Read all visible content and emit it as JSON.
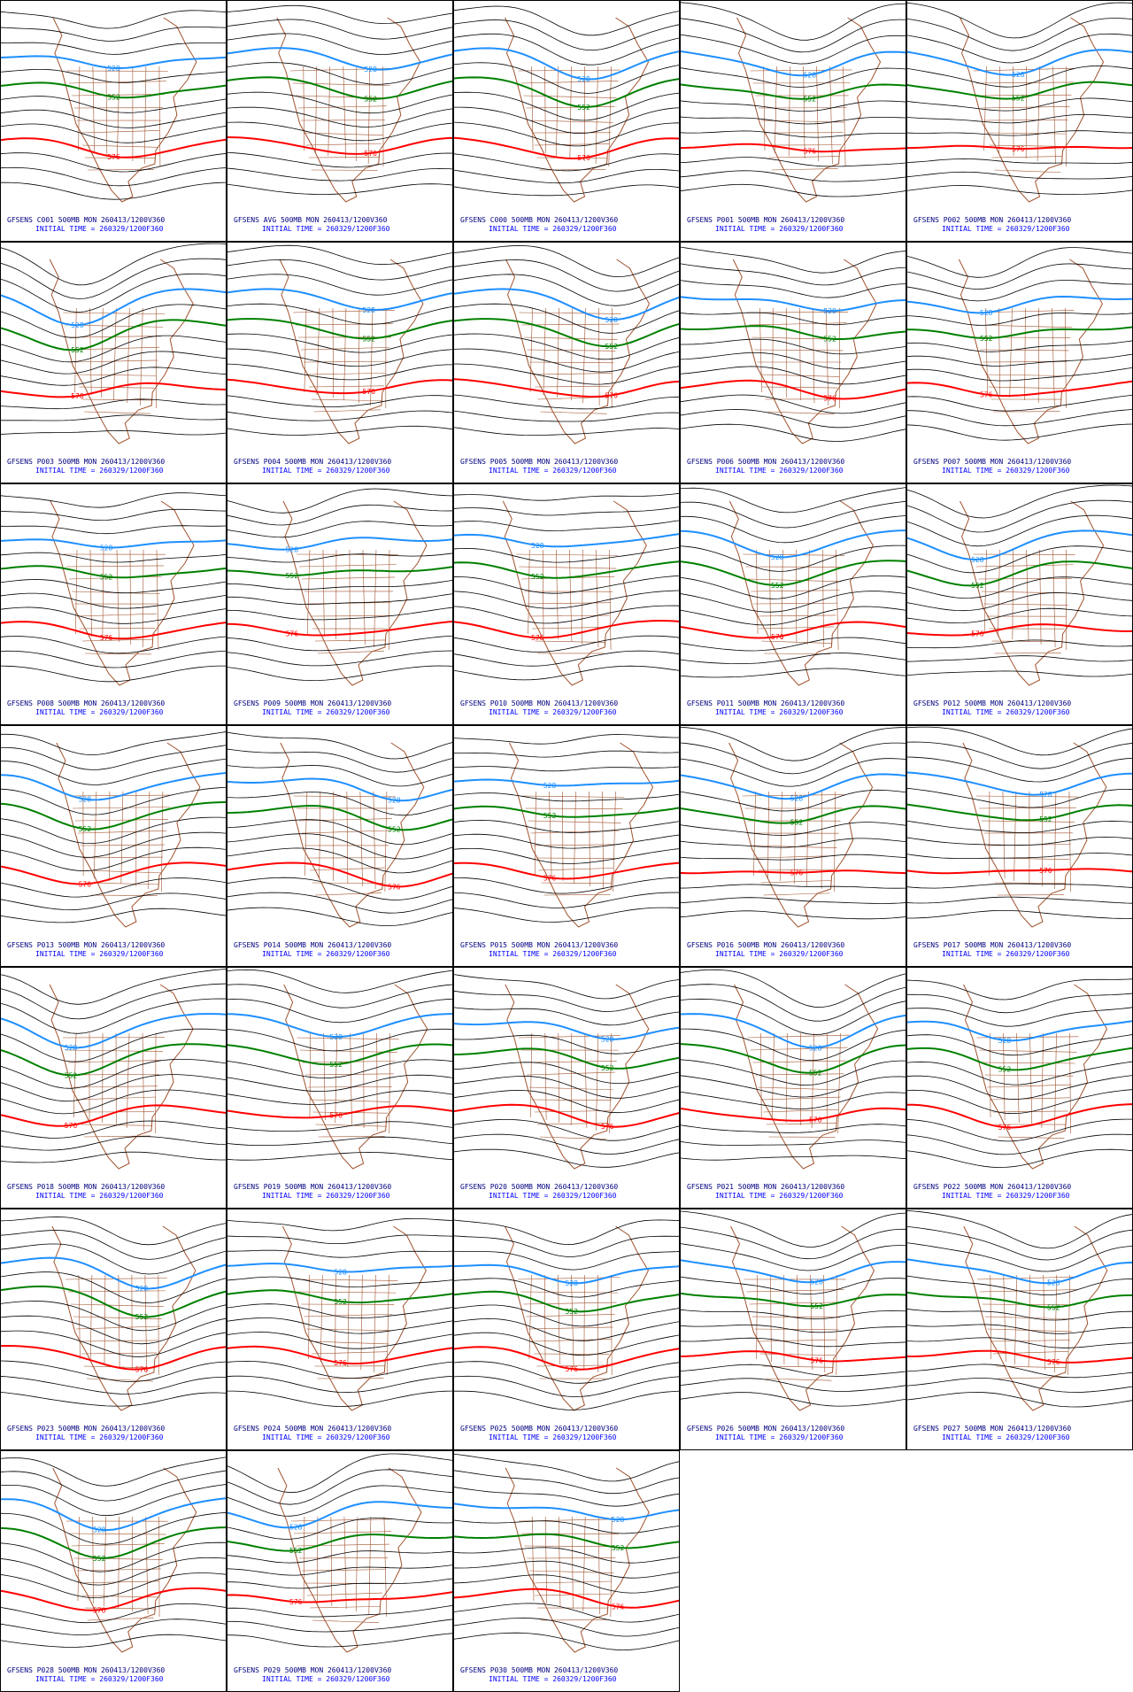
{
  "panels": [
    {
      "title": "GFSENS C001 500MB MON 260413/1200V360",
      "init": "INITIAL TIME = 260329/1200F360"
    },
    {
      "title": "GFSENS AVG 500MB MON 260413/1200V360",
      "init": "INITIAL TIME = 260329/1200F360"
    },
    {
      "title": "GFSENS C000 500MB MON 260413/1200V360",
      "init": "INITIAL TIME = 260329/1200F360"
    },
    {
      "title": "GFSENS P001 500MB MON 260413/1200V360",
      "init": "INITIAL TIME = 260329/1200F360"
    },
    {
      "title": "GFSENS P002 500MB MON 260413/1200V360",
      "init": "INITIAL TIME = 260329/1200F360"
    },
    {
      "title": "GFSENS P003 500MB MON 260413/1200V360",
      "init": "INITIAL TIME = 260329/1200F360"
    },
    {
      "title": "GFSENS P004 500MB MON 260413/1200V360",
      "init": "INITIAL TIME = 260329/1200F360"
    },
    {
      "title": "GFSENS P005 500MB MON 260413/1200V360",
      "init": "INITIAL TIME = 260329/1200F360"
    },
    {
      "title": "GFSENS P006 500MB MON 260413/1200V360",
      "init": "INITIAL TIME = 260329/1200F360"
    },
    {
      "title": "GFSENS P007 500MB MON 260413/1200V360",
      "init": "INITIAL TIME = 260329/1200F360"
    },
    {
      "title": "GFSENS P008 500MB MON 260413/1200V360",
      "init": "INITIAL TIME = 260329/1200F360"
    },
    {
      "title": "GFSENS P009 500MB MON 260413/1200V360",
      "init": "INITIAL TIME = 260329/1200F360"
    },
    {
      "title": "GFSENS P010 500MB MON 260413/1200V360",
      "init": "INITIAL TIME = 260329/1200F360"
    },
    {
      "title": "GFSENS P011 500MB MON 260413/1200V360",
      "init": "INITIAL TIME = 260329/1200F360"
    },
    {
      "title": "GFSENS P012 500MB MON 260413/1200V360",
      "init": "INITIAL TIME = 260329/1200F360"
    },
    {
      "title": "GFSENS P013 500MB MON 260413/1200V360",
      "init": "INITIAL TIME = 260329/1200F360"
    },
    {
      "title": "GFSENS P014 500MB MON 260413/1200V360",
      "init": "INITIAL TIME = 260329/1200F360"
    },
    {
      "title": "GFSENS P015 500MB MON 260413/1200V360",
      "init": "INITIAL TIME = 260329/1200F360"
    },
    {
      "title": "GFSENS P016 500MB MON 260413/1200V360",
      "init": "INITIAL TIME = 260329/1200F360"
    },
    {
      "title": "GFSENS P017 500MB MON 260413/1200V360",
      "init": "INITIAL TIME = 260329/1200F360"
    },
    {
      "title": "GFSENS P018 500MB MON 260413/1200V360",
      "init": "INITIAL TIME = 260329/1200F360"
    },
    {
      "title": "GFSENS P019 500MB MON 260413/1200V360",
      "init": "INITIAL TIME = 260329/1200F360"
    },
    {
      "title": "GFSENS P020 500MB MON 260413/1200V360",
      "init": "INITIAL TIME = 260329/1200F360"
    },
    {
      "title": "GFSENS P021 500MB MON 260413/1200V360",
      "init": "INITIAL TIME = 260329/1200F360"
    },
    {
      "title": "GFSENS P022 500MB MON 260413/1200V360",
      "init": "INITIAL TIME = 260329/1200F360"
    },
    {
      "title": "GFSENS P023 500MB MON 260413/1200V360",
      "init": "INITIAL TIME = 260329/1200F360"
    },
    {
      "title": "GFSENS P024 500MB MON 260413/1200V360",
      "init": "INITIAL TIME = 260329/1200F360"
    },
    {
      "title": "GFSENS P025 500MB MON 260413/1200V360",
      "init": "INITIAL TIME = 260329/1200F360"
    },
    {
      "title": "GFSENS P026 500MB MON 260413/1200V360",
      "init": "INITIAL TIME = 260329/1200F360"
    },
    {
      "title": "GFSENS P027 500MB MON 260413/1200V360",
      "init": "INITIAL TIME = 260329/1200F360"
    },
    {
      "title": "GFSENS P028 500MB MON 260413/1200V360",
      "init": "INITIAL TIME = 260329/1200F360"
    },
    {
      "title": "GFSENS P029 500MB MON 260413/1200V360",
      "init": "INITIAL TIME = 260329/1200F360"
    },
    {
      "title": "GFSENS P030 500MB MON 260413/1200V360",
      "init": "INITIAL TIME = 260329/1200F360"
    }
  ],
  "contours": [
    {
      "label": "528",
      "color": "#1e8fff"
    },
    {
      "label": "552",
      "color": "#008000"
    },
    {
      "label": "576",
      "color": "#ff0000"
    }
  ]
}
